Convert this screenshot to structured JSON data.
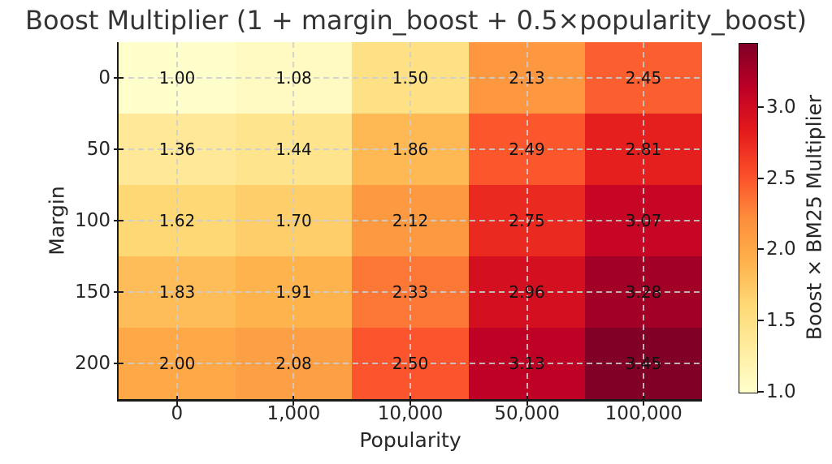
{
  "chart_data": {
    "type": "heatmap",
    "title": "Boost Multiplier (1 + margin_boost + 0.5×popularity_boost)",
    "xlabel": "Popularity",
    "ylabel": "Margin",
    "x_categories": [
      "0",
      "1,000",
      "10,000",
      "50,000",
      "100,000"
    ],
    "y_categories": [
      "0",
      "50",
      "100",
      "150",
      "200"
    ],
    "values": [
      [
        1.0,
        1.08,
        1.5,
        2.13,
        2.45
      ],
      [
        1.36,
        1.44,
        1.86,
        2.49,
        2.81
      ],
      [
        1.62,
        1.7,
        2.12,
        2.75,
        3.07
      ],
      [
        1.83,
        1.91,
        2.33,
        2.96,
        3.28
      ],
      [
        2.0,
        2.08,
        2.5,
        3.13,
        3.45
      ]
    ],
    "annotations_decimals": 2,
    "grid": true,
    "colorbar": {
      "label": "Boost × BM25 Multiplier",
      "tick_values": [
        1.0,
        1.5,
        2.0,
        2.5,
        3.0
      ],
      "vmin": 1.0,
      "vmax": 3.45,
      "colormap": "YlOrRd",
      "colormap_stops": [
        "#ffffcc",
        "#ffeda0",
        "#fed976",
        "#feb24c",
        "#fd8d3c",
        "#fc4e2a",
        "#e31a1c",
        "#bd0026",
        "#800026"
      ]
    }
  },
  "colors": {
    "background": "#ffffff",
    "title_text": "#333333",
    "tick_text": "#262626",
    "cell_text": "#111111",
    "gridline": "#cdcdcd",
    "spine": "#1a1a1a"
  }
}
